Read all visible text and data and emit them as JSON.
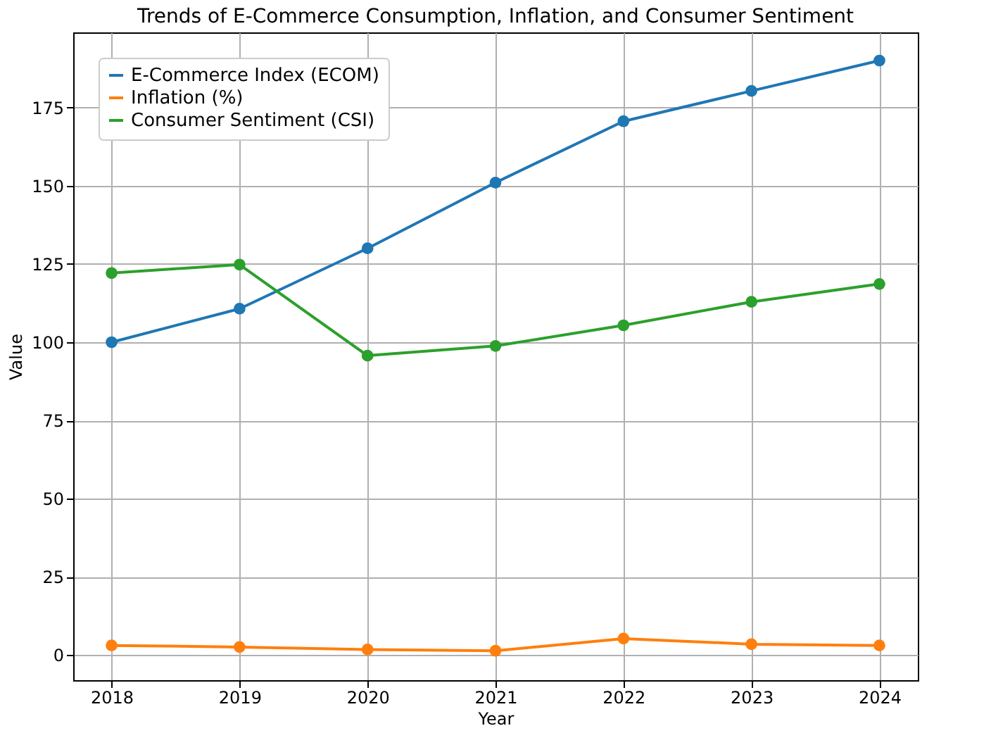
{
  "chart_data": {
    "type": "line",
    "title": "Trends of E-Commerce Consumption, Inflation, and Consumer Sentiment",
    "xlabel": "Year",
    "ylabel": "Value",
    "x": [
      2018,
      2019,
      2020,
      2021,
      2022,
      2023,
      2024
    ],
    "series": [
      {
        "name": "E-Commerce Index (ECOM)",
        "color": "#1f77b4",
        "values": [
          100,
          110.7,
          130,
          151,
          170.6,
          180.3,
          190
        ]
      },
      {
        "name": "Inflation (%)",
        "color": "#ff7f0e",
        "values": [
          3.1,
          2.6,
          1.8,
          1.4,
          5.3,
          3.5,
          3.1
        ]
      },
      {
        "name": "Consumer Sentiment (CSI)",
        "color": "#2ca02c",
        "values": [
          122.1,
          124.8,
          95.7,
          98.8,
          105.4,
          112.9,
          118.6
        ]
      }
    ],
    "xlim": [
      2017.7,
      2024.3
    ],
    "xticks": [
      2018,
      2019,
      2020,
      2021,
      2022,
      2023,
      2024
    ],
    "ylim": [
      -8,
      199
    ],
    "yticks": [
      0,
      25,
      50,
      75,
      100,
      125,
      150,
      175
    ],
    "grid": true,
    "legend": "top left",
    "marker": "circle",
    "line_style": "solid"
  }
}
